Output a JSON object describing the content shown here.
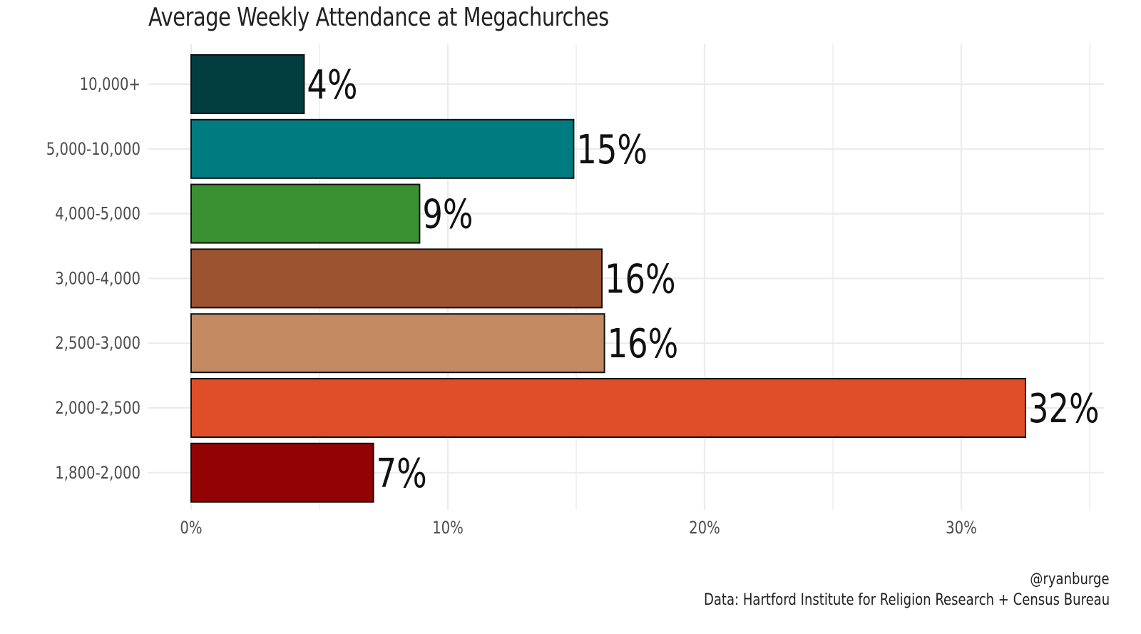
{
  "chart_data": {
    "type": "bar",
    "orientation": "horizontal",
    "title": "Average Weekly Attendance at Megachurches",
    "xlabel": "",
    "ylabel": "",
    "categories": [
      "10,000+",
      "5,000-10,000",
      "4,000-5,000",
      "3,000-4,000",
      "2,500-3,000",
      "2,000-2,500",
      "1,800-2,000"
    ],
    "values": [
      4.4,
      14.9,
      8.9,
      16.0,
      16.1,
      32.5,
      7.1
    ],
    "data_labels": [
      "4%",
      "15%",
      "9%",
      "16%",
      "16%",
      "32%",
      "7%"
    ],
    "colors": [
      "#023E3F",
      "#007C80",
      "#3A9132",
      "#9C5430",
      "#C38A62",
      "#DF4E28",
      "#920404"
    ],
    "xticks": [
      "0%",
      "10%",
      "20%",
      "30%"
    ],
    "xtick_values": [
      0,
      10,
      20,
      30
    ],
    "xlim": [
      0,
      35
    ],
    "grid": true,
    "legend": "none"
  },
  "caption": {
    "handle": "@ryanburge",
    "source": "Data: Hartford Institute for Religion Research + Census Bureau"
  }
}
